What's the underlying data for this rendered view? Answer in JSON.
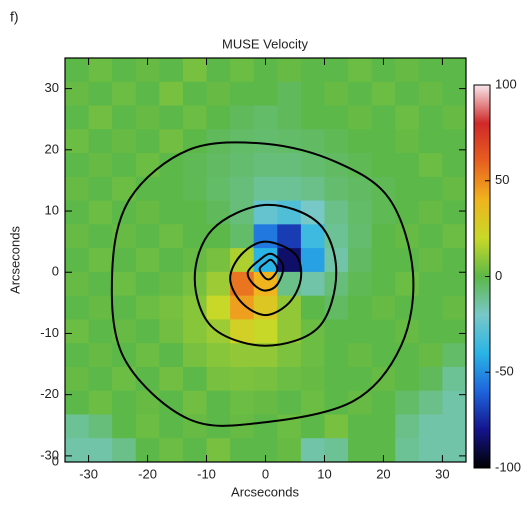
{
  "panel_label": "f)",
  "chart_data": {
    "type": "velocity-map",
    "title": "MUSE Velocity",
    "x_label": "Arcseconds",
    "y_label": "Arcseconds",
    "xlim": [
      -34,
      34
    ],
    "ylim": [
      -31,
      35
    ],
    "xticks": [
      -30,
      -20,
      -10,
      0,
      10,
      20,
      30
    ],
    "yticks": [
      {
        "value": -31,
        "label": "0"
      },
      -30,
      -20,
      -10,
      0,
      10,
      20,
      30
    ],
    "clim": [
      -100,
      100
    ],
    "cticks": [
      -100,
      -50,
      0,
      50,
      100
    ],
    "colormap": [
      "#000000",
      "#14148c",
      "#1e64dc",
      "#2ab4e6",
      "#78c8c8",
      "#5cb848",
      "#c8d828",
      "#f0b41e",
      "#e86020",
      "#d02828",
      "#f8e8ec"
    ],
    "contour_color": "#000000",
    "field": [
      [
        0,
        3,
        0,
        2,
        0,
        5,
        0,
        3,
        0,
        2,
        0,
        0,
        3,
        0,
        2,
        0,
        0
      ],
      [
        2,
        0,
        3,
        0,
        5,
        0,
        2,
        0,
        0,
        -3,
        0,
        2,
        0,
        3,
        0,
        2,
        0
      ],
      [
        0,
        4,
        0,
        2,
        0,
        3,
        0,
        -3,
        -5,
        -3,
        0,
        0,
        2,
        0,
        3,
        0,
        2
      ],
      [
        3,
        0,
        2,
        0,
        4,
        0,
        -3,
        -5,
        -6,
        -5,
        -4,
        -2,
        0,
        0,
        2,
        0,
        0
      ],
      [
        0,
        2,
        0,
        3,
        0,
        -2,
        -4,
        -6,
        -8,
        -8,
        -6,
        -4,
        -2,
        0,
        0,
        3,
        0
      ],
      [
        2,
        0,
        3,
        0,
        0,
        -2,
        -5,
        -8,
        -12,
        -12,
        -10,
        -6,
        -4,
        -2,
        0,
        0,
        2
      ],
      [
        0,
        3,
        0,
        2,
        0,
        0,
        -3,
        -8,
        -25,
        -30,
        -20,
        -10,
        -5,
        -2,
        0,
        2,
        0
      ],
      [
        2,
        0,
        2,
        0,
        3,
        0,
        0,
        -5,
        -55,
        -70,
        -35,
        -12,
        -6,
        0,
        2,
        0,
        3
      ],
      [
        0,
        3,
        0,
        3,
        0,
        2,
        5,
        15,
        -40,
        -85,
        -45,
        -15,
        -4,
        0,
        0,
        2,
        0
      ],
      [
        2,
        0,
        3,
        0,
        2,
        5,
        12,
        55,
        40,
        -10,
        -15,
        -8,
        -2,
        0,
        3,
        0,
        0
      ],
      [
        0,
        2,
        0,
        3,
        5,
        8,
        20,
        45,
        30,
        10,
        0,
        -4,
        0,
        2,
        0,
        0,
        2
      ],
      [
        3,
        0,
        2,
        0,
        4,
        8,
        12,
        25,
        20,
        10,
        3,
        0,
        0,
        0,
        2,
        0,
        0
      ],
      [
        0,
        2,
        0,
        3,
        0,
        5,
        8,
        10,
        10,
        6,
        3,
        0,
        2,
        0,
        0,
        2,
        -5
      ],
      [
        2,
        0,
        3,
        0,
        4,
        0,
        5,
        6,
        5,
        3,
        2,
        0,
        0,
        2,
        0,
        -3,
        -12
      ],
      [
        0,
        3,
        0,
        2,
        0,
        4,
        0,
        3,
        2,
        0,
        3,
        0,
        2,
        0,
        -5,
        -10,
        -15
      ],
      [
        -12,
        -8,
        0,
        3,
        0,
        2,
        0,
        2,
        0,
        3,
        0,
        5,
        0,
        0,
        -10,
        -15,
        -15
      ],
      [
        -15,
        -15,
        -10,
        0,
        3,
        0,
        5,
        0,
        0,
        2,
        -15,
        -12,
        0,
        0,
        -12,
        -15,
        -15
      ]
    ],
    "contours": [
      {
        "x": [
          0,
          12,
          21,
          25,
          23,
          15,
          0,
          -13,
          -24,
          -26,
          -23,
          -13
        ],
        "y": [
          21,
          18,
          12,
          0,
          -12,
          -21,
          -24.5,
          -24,
          -14,
          0,
          12,
          20
        ]
      },
      {
        "x": [
          0,
          9,
          12,
          9,
          0,
          -9,
          -12,
          -9
        ],
        "y": [
          11,
          8,
          0,
          -9,
          -12,
          -9,
          -1,
          7
        ]
      },
      {
        "x": [
          0,
          5,
          6,
          4,
          0,
          -4,
          -6,
          -4
        ],
        "y": [
          5,
          3,
          -1,
          -5,
          -7,
          -5,
          -1,
          3
        ]
      },
      {
        "x": [
          1,
          3,
          2,
          0,
          -2,
          -3,
          -1
        ],
        "y": [
          3,
          1,
          -2,
          -3,
          -2,
          0,
          2
        ]
      },
      {
        "x": [
          1,
          2,
          1,
          0,
          -1,
          0
        ],
        "y": [
          2,
          0.5,
          -1,
          -1,
          0.5,
          1.5
        ]
      }
    ]
  }
}
